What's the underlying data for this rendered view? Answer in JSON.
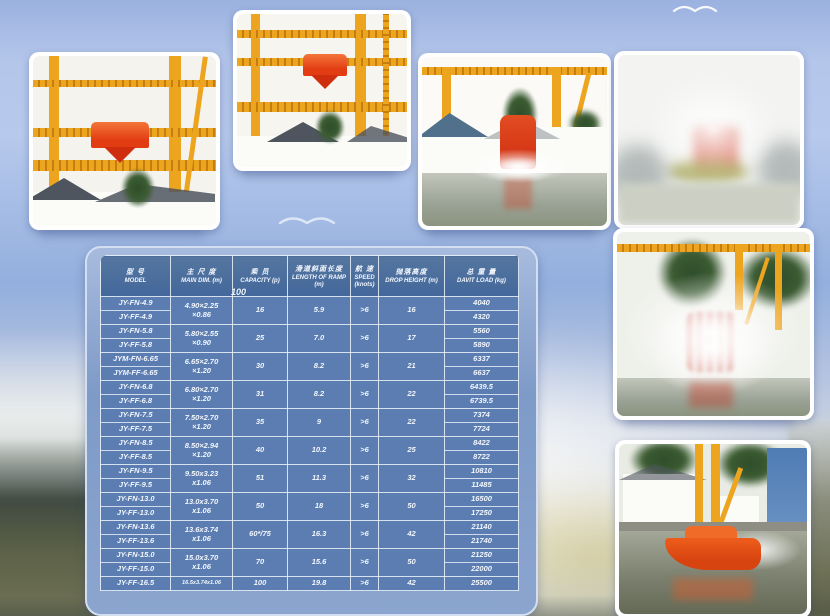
{
  "colors": {
    "page_top": "#9bb1df",
    "table_header_bg": "#4a6da1",
    "table_row_bg": "#5b7db1",
    "table_text": "#f3f7fe",
    "crane_yellow": "#eda41e",
    "lifeboat_orange": "#e85417"
  },
  "stray_label": "100",
  "table": {
    "columns": [
      {
        "zh": "型 号",
        "en": "MODEL"
      },
      {
        "zh": "主 尺 度",
        "en": "MAIN DIM. (m)"
      },
      {
        "zh": "乘 员",
        "en": "CAPACITY (p)"
      },
      {
        "zh": "滑道斜面长度",
        "en": "LENGTH OF RAMP (m)"
      },
      {
        "zh": "航 速",
        "en": "SPEED (knots)"
      },
      {
        "zh": "抛落高度",
        "en": "DROP HEIGHT (m)"
      },
      {
        "zh": "总 重 量",
        "en": "DAVIT LOAD (kg)"
      }
    ],
    "groups": [
      {
        "models": [
          "JY-FN-4.9",
          "JY-FF-4.9"
        ],
        "dim": [
          "4.90×2.25",
          "×0.86"
        ],
        "capacity": "16",
        "ramp": "5.9",
        "speed": ">6",
        "drop": "16",
        "loads": [
          "4040",
          "4320"
        ]
      },
      {
        "models": [
          "JY-FN-5.8",
          "JY-FF-5.8"
        ],
        "dim": [
          "5.80×2.55",
          "×0.90"
        ],
        "capacity": "25",
        "ramp": "7.0",
        "speed": ">6",
        "drop": "17",
        "loads": [
          "5560",
          "5890"
        ]
      },
      {
        "models": [
          "JYM-FN-6.65",
          "JYM-FF-6.65"
        ],
        "dim": [
          "6.65×2.70",
          "×1.20"
        ],
        "capacity": "30",
        "ramp": "8.2",
        "speed": ">6",
        "drop": "21",
        "loads": [
          "6337",
          "6637"
        ]
      },
      {
        "models": [
          "JY-FN-6.8",
          "JY-FF-6.8"
        ],
        "dim": [
          "6.80×2.70",
          "×1.20"
        ],
        "capacity": "31",
        "ramp": "8.2",
        "speed": ">6",
        "drop": "22",
        "loads": [
          "6439.5",
          "6739.5"
        ]
      },
      {
        "models": [
          "JY-FN-7.5",
          "JY-FF-7.5"
        ],
        "dim": [
          "7.50×2.70",
          "×1.20"
        ],
        "capacity": "35",
        "ramp": "9",
        "speed": ">6",
        "drop": "22",
        "loads": [
          "7374",
          "7724"
        ]
      },
      {
        "models": [
          "JY-FN-8.5",
          "JY-FF-8.5"
        ],
        "dim": [
          "8.50×2.94",
          "×1.20"
        ],
        "capacity": "40",
        "ramp": "10.2",
        "speed": ">6",
        "drop": "25",
        "loads": [
          "8422",
          "8722"
        ]
      },
      {
        "models": [
          "JY-FN-9.5",
          "JY-FF-9.5"
        ],
        "dim": [
          "9.50x3.23",
          "x1.06"
        ],
        "capacity": "51",
        "ramp": "11.3",
        "speed": ">6",
        "drop": "32",
        "loads": [
          "10810",
          "11485"
        ]
      },
      {
        "models": [
          "JY-FN-13.0",
          "JY-FF-13.0"
        ],
        "dim": [
          "13.0x3.70",
          "x1.06"
        ],
        "capacity": "50",
        "ramp": "18",
        "speed": ">6",
        "drop": "50",
        "loads": [
          "16500",
          "17250"
        ]
      },
      {
        "models": [
          "JY-FN-13.6",
          "JY-FF-13.6"
        ],
        "dim": [
          "13.6x3.74",
          "x1.06"
        ],
        "capacity": "60*/75",
        "ramp": "16.3",
        "speed": ">6",
        "drop": "42",
        "loads": [
          "21140",
          "21740"
        ]
      },
      {
        "models": [
          "JY-FN-15.0",
          "JY-FF-15.0"
        ],
        "dim": [
          "15.0x3.70",
          "x1.06"
        ],
        "capacity": "70",
        "ramp": "15.6",
        "speed": ">6",
        "drop": "50",
        "loads": [
          "21250",
          "22000"
        ]
      },
      {
        "models": [
          "JY-FF-16.5"
        ],
        "dim": [
          "16.5x3.74x1.06"
        ],
        "capacity": "100",
        "ramp": "19.8",
        "speed": ">6",
        "drop": "42",
        "loads": [
          "25500"
        ]
      }
    ]
  }
}
